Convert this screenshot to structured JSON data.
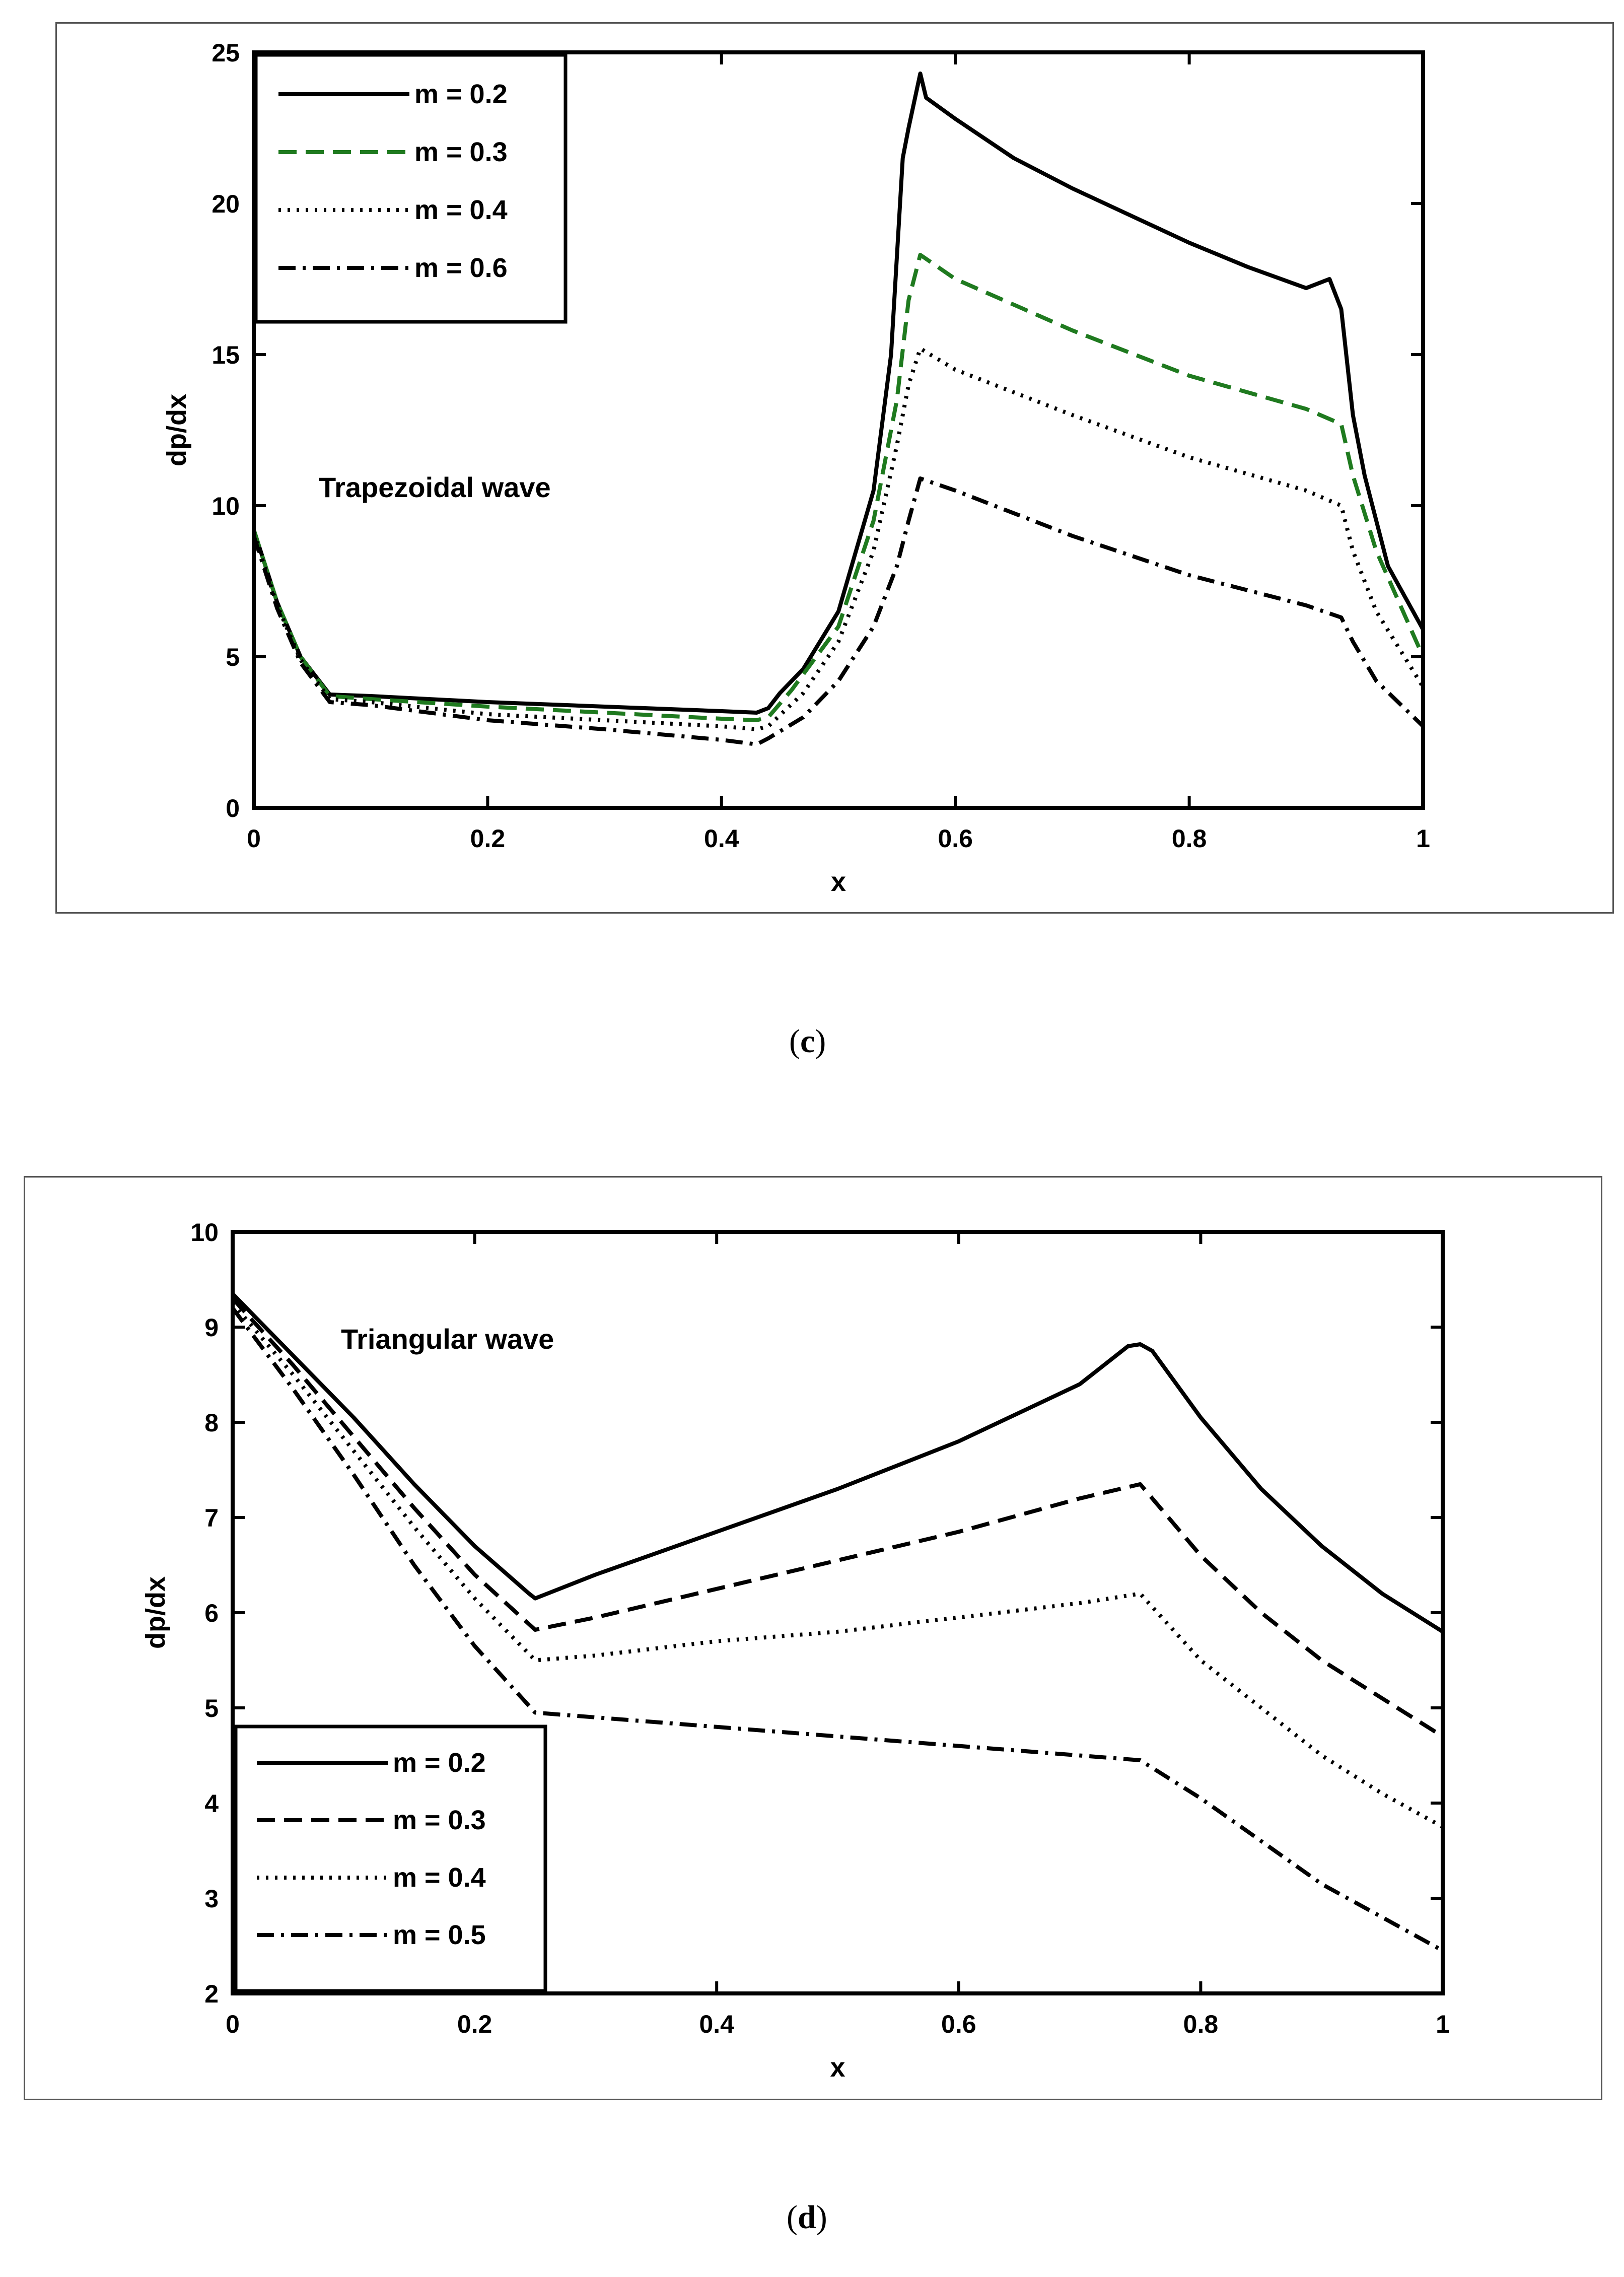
{
  "captions": {
    "c": "c",
    "d": "d"
  },
  "chart_data": [
    {
      "id": "c",
      "type": "line",
      "title": "",
      "annotation": "Trapezoidal wave",
      "xlabel": "x",
      "ylabel": "dp/dx",
      "xlim": [
        0,
        1
      ],
      "ylim": [
        0,
        25
      ],
      "xticks": [
        0,
        0.2,
        0.4,
        0.6,
        0.8,
        1
      ],
      "xtick_labels": [
        "0",
        "0.2",
        "0.4",
        "0.6",
        "0.8",
        "1"
      ],
      "yticks": [
        0,
        5,
        10,
        15,
        20,
        25
      ],
      "ytick_labels": [
        "0",
        "5",
        "10",
        "15",
        "20",
        "25"
      ],
      "legend_position": "top-left",
      "series": [
        {
          "name": "m = 0.2",
          "color": "#000000",
          "dash": "solid",
          "x": [
            0,
            0.02,
            0.04,
            0.065,
            0.1,
            0.2,
            0.3,
            0.4,
            0.43,
            0.44,
            0.45,
            0.47,
            0.5,
            0.53,
            0.545,
            0.555,
            0.56,
            0.57,
            0.575,
            0.6,
            0.65,
            0.7,
            0.75,
            0.8,
            0.85,
            0.9,
            0.92,
            0.93,
            0.94,
            0.95,
            0.97,
            1.0
          ],
          "y": [
            9.2,
            6.8,
            5.0,
            3.75,
            3.7,
            3.5,
            3.35,
            3.2,
            3.15,
            3.3,
            3.8,
            4.6,
            6.5,
            10.5,
            15.0,
            21.5,
            22.5,
            24.3,
            23.5,
            22.8,
            21.5,
            20.5,
            19.6,
            18.7,
            17.9,
            17.2,
            17.5,
            16.5,
            13.0,
            11.0,
            8.0,
            5.9
          ]
        },
        {
          "name": "m = 0.3",
          "color": "#1f7a1f",
          "dash": "dashed",
          "x": [
            0,
            0.02,
            0.04,
            0.065,
            0.1,
            0.2,
            0.3,
            0.4,
            0.43,
            0.44,
            0.46,
            0.5,
            0.53,
            0.55,
            0.56,
            0.57,
            0.6,
            0.7,
            0.8,
            0.9,
            0.93,
            0.94,
            0.96,
            1.0
          ],
          "y": [
            9.2,
            6.8,
            5.0,
            3.7,
            3.6,
            3.35,
            3.15,
            2.95,
            2.9,
            3.0,
            3.9,
            6.0,
            9.5,
            13.5,
            16.8,
            18.3,
            17.5,
            15.8,
            14.3,
            13.2,
            12.7,
            11.0,
            8.5,
            5.0
          ]
        },
        {
          "name": "m = 0.4",
          "color": "#000000",
          "dash": "dotted",
          "x": [
            0,
            0.02,
            0.04,
            0.065,
            0.1,
            0.2,
            0.3,
            0.4,
            0.43,
            0.44,
            0.47,
            0.5,
            0.53,
            0.55,
            0.56,
            0.57,
            0.6,
            0.7,
            0.8,
            0.9,
            0.93,
            0.94,
            0.96,
            1.0
          ],
          "y": [
            9.1,
            6.7,
            4.9,
            3.6,
            3.5,
            3.1,
            2.9,
            2.7,
            2.6,
            2.7,
            3.8,
            5.5,
            8.5,
            12.0,
            14.0,
            15.2,
            14.5,
            13.0,
            11.6,
            10.5,
            10.0,
            8.5,
            6.5,
            4.0
          ]
        },
        {
          "name": "m = 0.6",
          "color": "#000000",
          "dash": "dashdot",
          "x": [
            0,
            0.02,
            0.04,
            0.065,
            0.1,
            0.2,
            0.3,
            0.4,
            0.43,
            0.44,
            0.47,
            0.5,
            0.53,
            0.55,
            0.56,
            0.57,
            0.6,
            0.7,
            0.8,
            0.9,
            0.93,
            0.94,
            0.96,
            1.0
          ],
          "y": [
            9.0,
            6.6,
            4.8,
            3.5,
            3.4,
            2.9,
            2.6,
            2.25,
            2.1,
            2.3,
            3.0,
            4.2,
            6.0,
            8.0,
            9.5,
            10.9,
            10.5,
            9.0,
            7.7,
            6.7,
            6.3,
            5.5,
            4.2,
            2.7
          ]
        }
      ]
    },
    {
      "id": "d",
      "type": "line",
      "title": "",
      "annotation": "Triangular wave",
      "xlabel": "x",
      "ylabel": "dp/dx",
      "xlim": [
        0,
        1
      ],
      "ylim": [
        2,
        10
      ],
      "xticks": [
        0,
        0.2,
        0.4,
        0.6,
        0.8,
        1
      ],
      "xtick_labels": [
        "0",
        "0.2",
        "0.4",
        "0.6",
        "0.8",
        "1"
      ],
      "yticks": [
        2,
        3,
        4,
        5,
        6,
        7,
        8,
        9,
        10
      ],
      "ytick_labels": [
        "2",
        "3",
        "4",
        "5",
        "6",
        "7",
        "8",
        "9",
        "10"
      ],
      "legend_position": "bottom-left",
      "series": [
        {
          "name": "m = 0.2",
          "color": "#000000",
          "dash": "solid",
          "x": [
            0,
            0.05,
            0.1,
            0.15,
            0.2,
            0.245,
            0.25,
            0.26,
            0.3,
            0.4,
            0.5,
            0.6,
            0.7,
            0.74,
            0.75,
            0.76,
            0.8,
            0.85,
            0.9,
            0.95,
            1.0
          ],
          "y": [
            9.35,
            8.7,
            8.05,
            7.35,
            6.7,
            6.2,
            6.15,
            6.2,
            6.4,
            6.85,
            7.3,
            7.8,
            8.4,
            8.8,
            8.82,
            8.75,
            8.05,
            7.3,
            6.7,
            6.2,
            5.8
          ]
        },
        {
          "name": "m = 0.3",
          "color": "#000000",
          "dash": "dashed",
          "x": [
            0,
            0.05,
            0.1,
            0.15,
            0.2,
            0.25,
            0.3,
            0.4,
            0.5,
            0.6,
            0.7,
            0.75,
            0.8,
            0.85,
            0.9,
            0.95,
            1.0
          ],
          "y": [
            9.3,
            8.6,
            7.85,
            7.1,
            6.4,
            5.82,
            5.95,
            6.25,
            6.55,
            6.85,
            7.2,
            7.35,
            6.6,
            6.0,
            5.5,
            5.1,
            4.7
          ]
        },
        {
          "name": "m = 0.4",
          "color": "#000000",
          "dash": "dotted",
          "x": [
            0,
            0.05,
            0.1,
            0.15,
            0.2,
            0.25,
            0.3,
            0.4,
            0.5,
            0.6,
            0.7,
            0.75,
            0.8,
            0.85,
            0.9,
            0.95,
            1.0
          ],
          "y": [
            9.25,
            8.5,
            7.7,
            6.9,
            6.15,
            5.5,
            5.55,
            5.7,
            5.8,
            5.95,
            6.1,
            6.2,
            5.5,
            5.0,
            4.5,
            4.1,
            3.75
          ]
        },
        {
          "name": "m = 0.5",
          "color": "#000000",
          "dash": "dashdot",
          "x": [
            0,
            0.05,
            0.1,
            0.15,
            0.2,
            0.25,
            0.3,
            0.4,
            0.5,
            0.6,
            0.7,
            0.75,
            0.8,
            0.85,
            0.9,
            0.95,
            1.0
          ],
          "y": [
            9.2,
            8.35,
            7.45,
            6.5,
            5.65,
            4.95,
            4.9,
            4.8,
            4.7,
            4.6,
            4.5,
            4.45,
            4.05,
            3.6,
            3.15,
            2.8,
            2.45
          ]
        }
      ]
    }
  ]
}
